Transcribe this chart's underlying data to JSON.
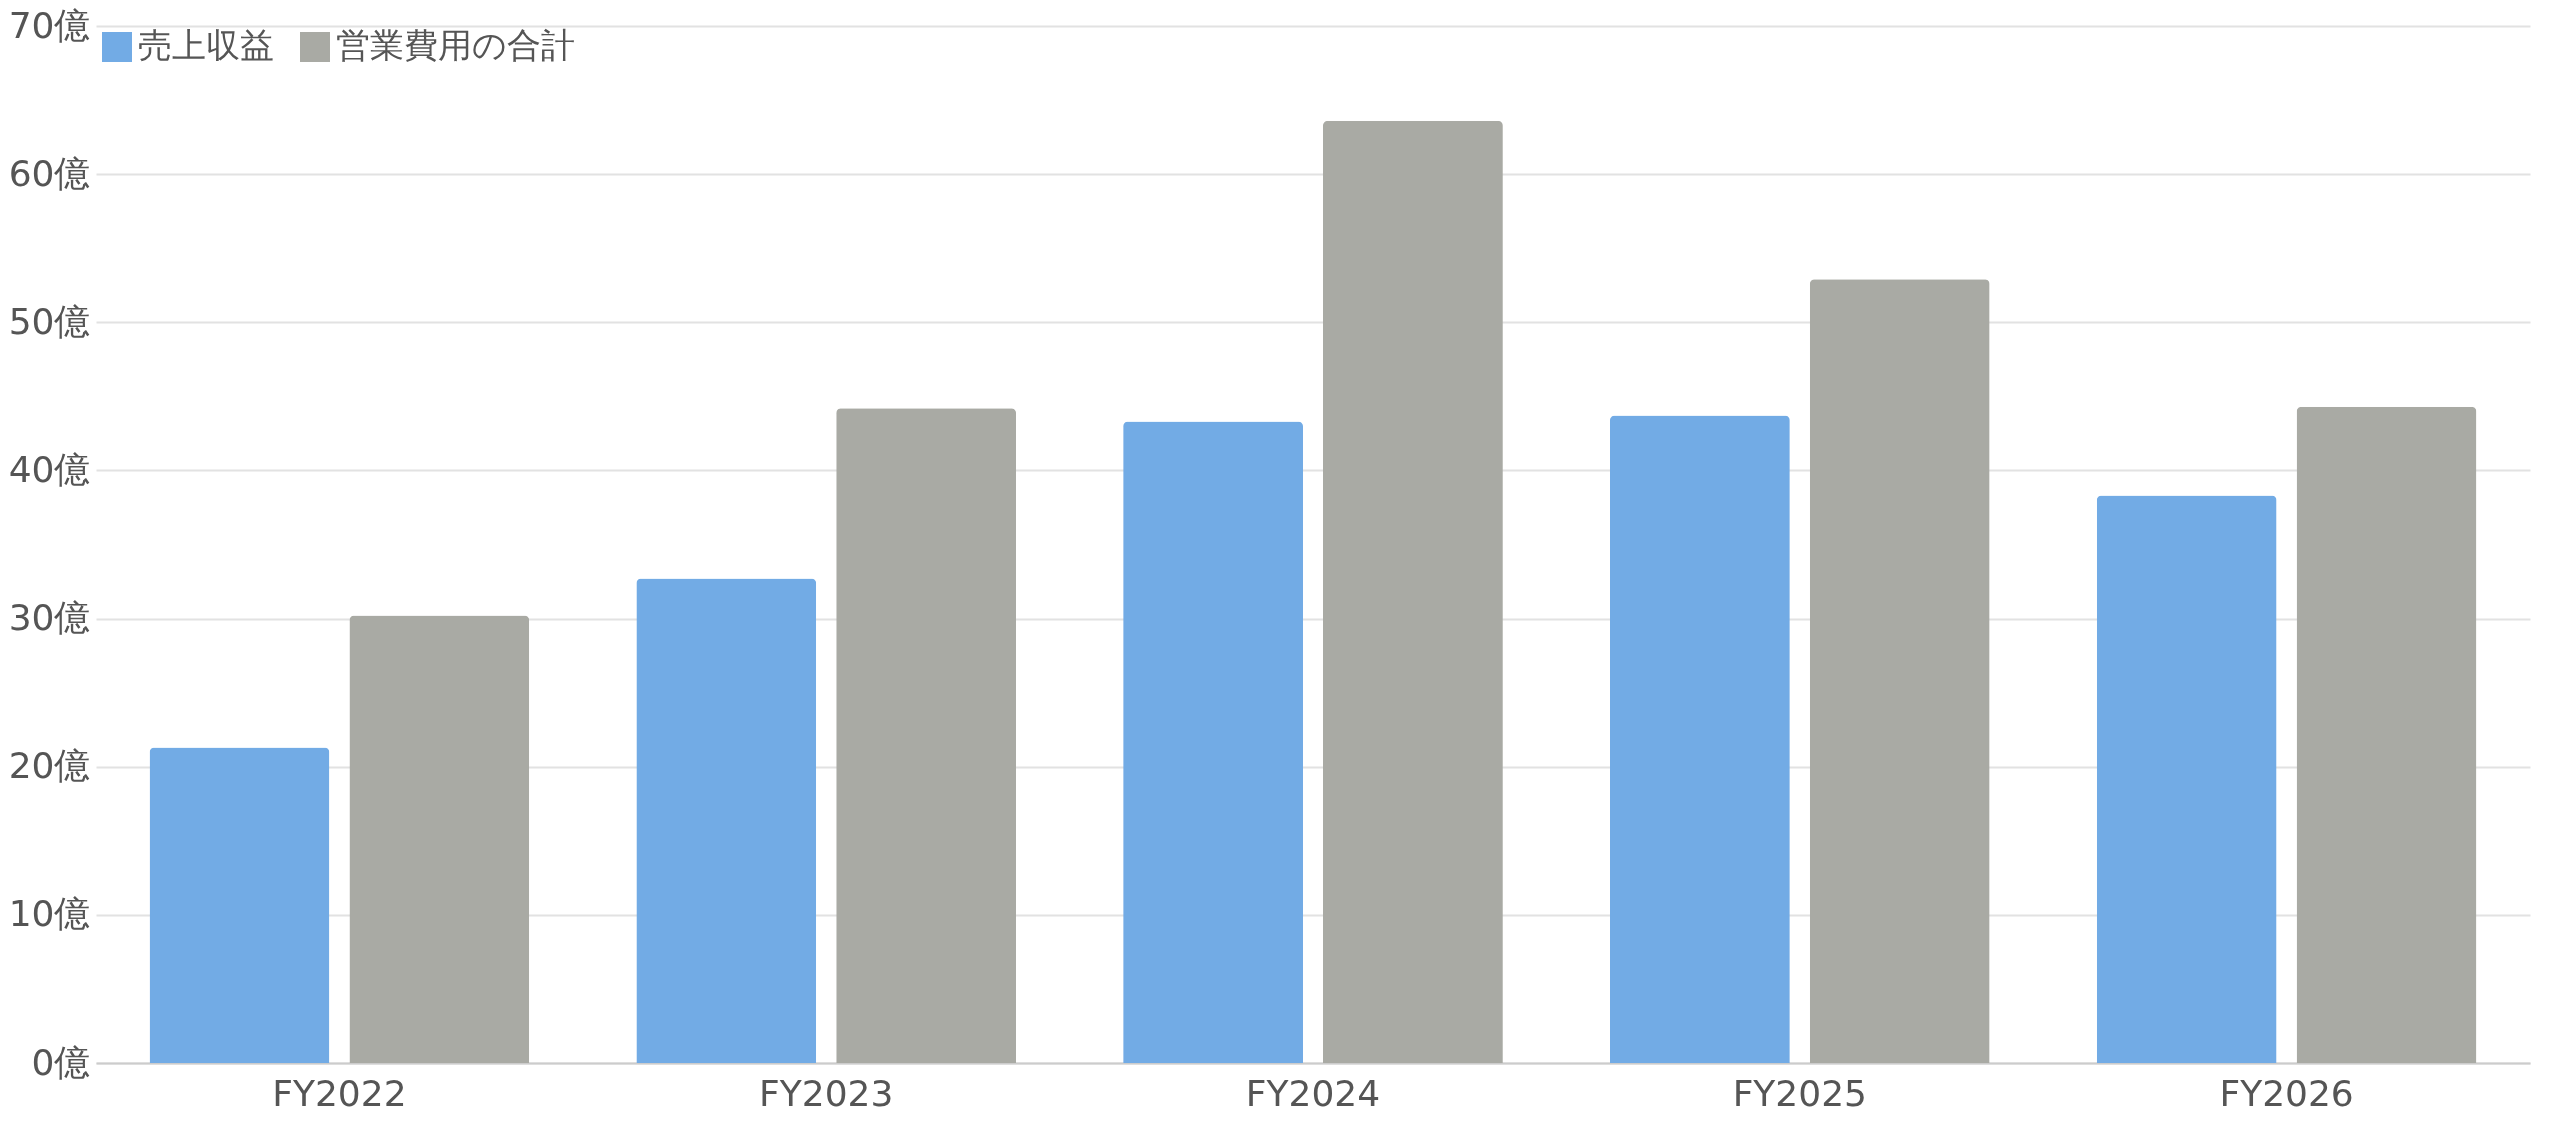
{
  "chart_data": {
    "type": "bar",
    "categories": [
      "FY2022",
      "FY2023",
      "FY2024",
      "FY2025",
      "FY2026"
    ],
    "series": [
      {
        "name": "売上収益",
        "color": "#72abe5",
        "values": [
          21.3,
          32.7,
          43.3,
          43.7,
          38.3
        ]
      },
      {
        "name": "営業費用の合計",
        "color": "#a9aaa4",
        "values": [
          30.2,
          44.2,
          63.6,
          52.9,
          44.3
        ]
      }
    ],
    "ylim": [
      0,
      70
    ],
    "yticks": [
      {
        "value": 0,
        "label": "0億"
      },
      {
        "value": 10,
        "label": "10億"
      },
      {
        "value": 20,
        "label": "20億"
      },
      {
        "value": 30,
        "label": "30億"
      },
      {
        "value": 40,
        "label": "40億"
      },
      {
        "value": 50,
        "label": "50億"
      },
      {
        "value": 60,
        "label": "60億"
      },
      {
        "value": 70,
        "label": "70億"
      }
    ],
    "grid": "y",
    "legend": "top left"
  }
}
